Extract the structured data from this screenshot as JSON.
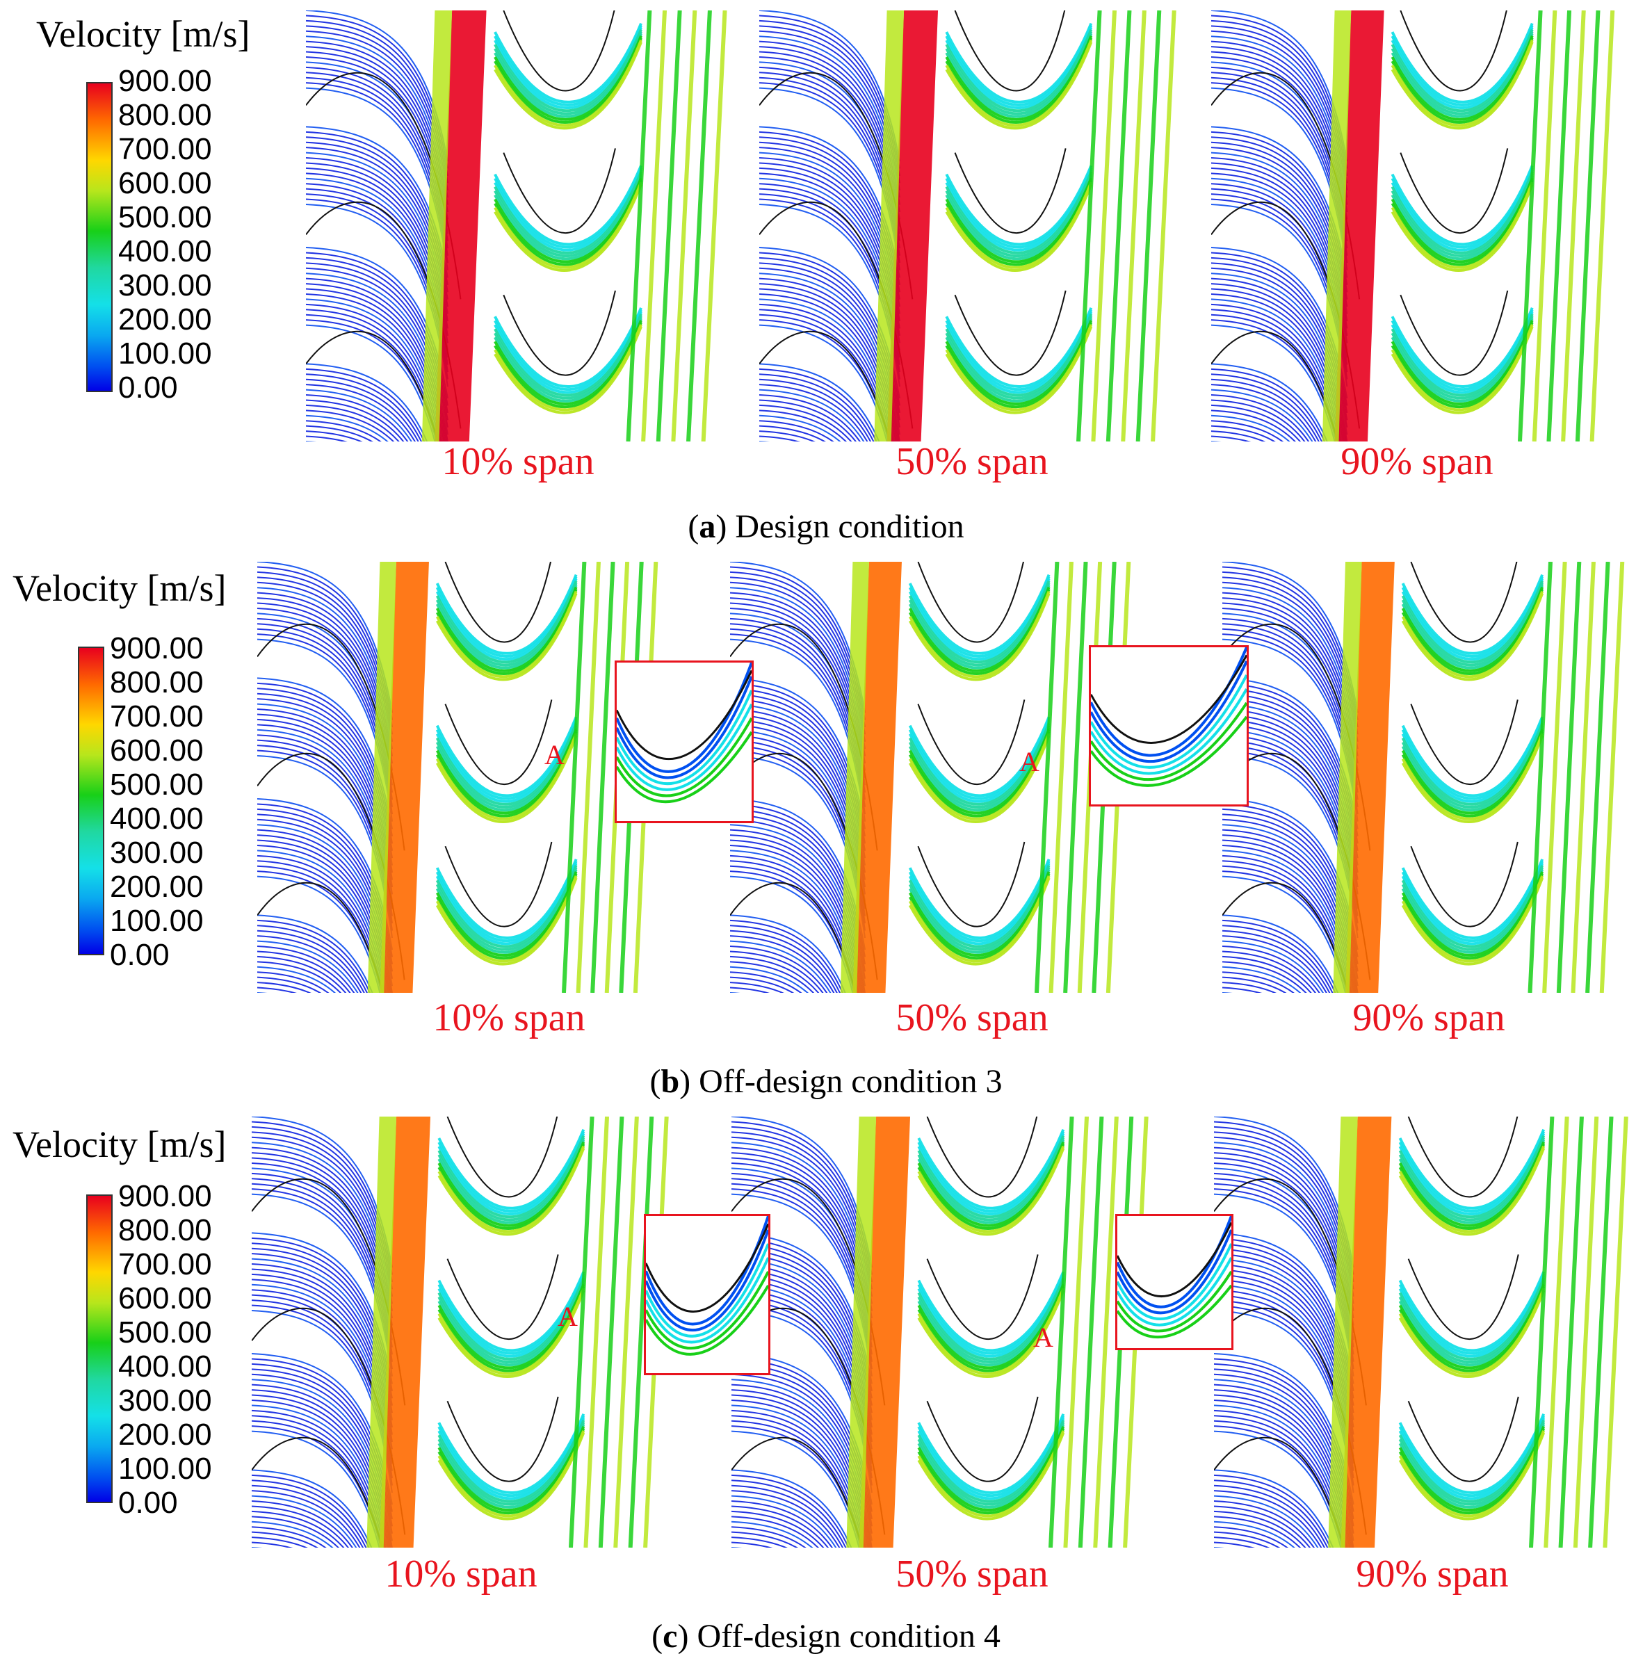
{
  "colorbar": {
    "title": "Velocity [m/s]",
    "ticks": [
      "900.00",
      "800.00",
      "700.00",
      "600.00",
      "500.00",
      "400.00",
      "300.00",
      "200.00",
      "100.00",
      "0.00"
    ],
    "colors": [
      "#e8001e",
      "#ff6a00",
      "#ffd700",
      "#b7e61c",
      "#18d018",
      "#20d8a0",
      "#14e0e8",
      "#0aa8f0",
      "#0050f0",
      "#0000e6"
    ]
  },
  "panels": [
    {
      "label": "a",
      "caption": "Design condition",
      "spans": [
        "10% span",
        "50% span",
        "90% span"
      ]
    },
    {
      "label": "b",
      "caption": "Off-design condition 3",
      "spans": [
        "10% span",
        "50% span",
        "90% span"
      ],
      "marker": "A"
    },
    {
      "label": "c",
      "caption": "Off-design condition 4",
      "spans": [
        "10% span",
        "50% span",
        "90% span"
      ],
      "marker": "A"
    }
  ],
  "colors": {
    "label_red": "#e8141e"
  }
}
